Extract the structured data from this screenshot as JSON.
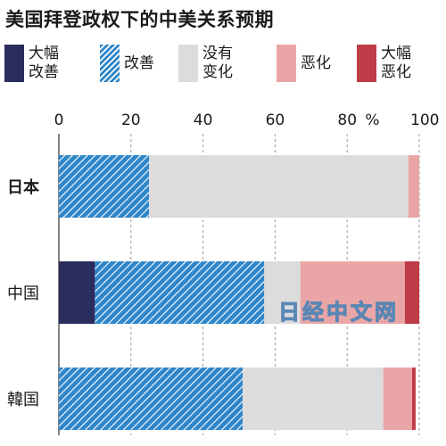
{
  "title": "美国拜登政权下的中美关系预期",
  "watermark": "日经中文网",
  "chart_data": {
    "type": "bar",
    "orientation": "horizontal",
    "stacked": true,
    "title": "美国拜登政权下的中美关系预期",
    "unit_label": "%",
    "xlim": [
      0,
      100
    ],
    "ticks": [
      0,
      20,
      40,
      60,
      80,
      100
    ],
    "grid": true,
    "legend_position": "top",
    "categories": [
      "日本",
      "中国",
      "韓国"
    ],
    "series": [
      {
        "name": "大幅改善",
        "label_lines": [
          "大幅",
          "改善"
        ],
        "color": "#2b2d5e",
        "pattern": "solid",
        "values": [
          0,
          10,
          0
        ]
      },
      {
        "name": "改善",
        "label_lines": [
          "改善"
        ],
        "color": "#2f86c8",
        "pattern": "hatch",
        "values": [
          25,
          47,
          51
        ]
      },
      {
        "name": "没有变化",
        "label_lines": [
          "没有",
          "变化"
        ],
        "color": "#dcdcdc",
        "pattern": "solid",
        "values": [
          72,
          10,
          39
        ]
      },
      {
        "name": "恶化",
        "label_lines": [
          "恶化"
        ],
        "color": "#eaa6a6",
        "pattern": "solid",
        "values": [
          3,
          29,
          8
        ]
      },
      {
        "name": "大幅恶化",
        "label_lines": [
          "大幅",
          "恶化"
        ],
        "color": "#be3c48",
        "pattern": "solid",
        "values": [
          0,
          4,
          1
        ]
      }
    ]
  }
}
